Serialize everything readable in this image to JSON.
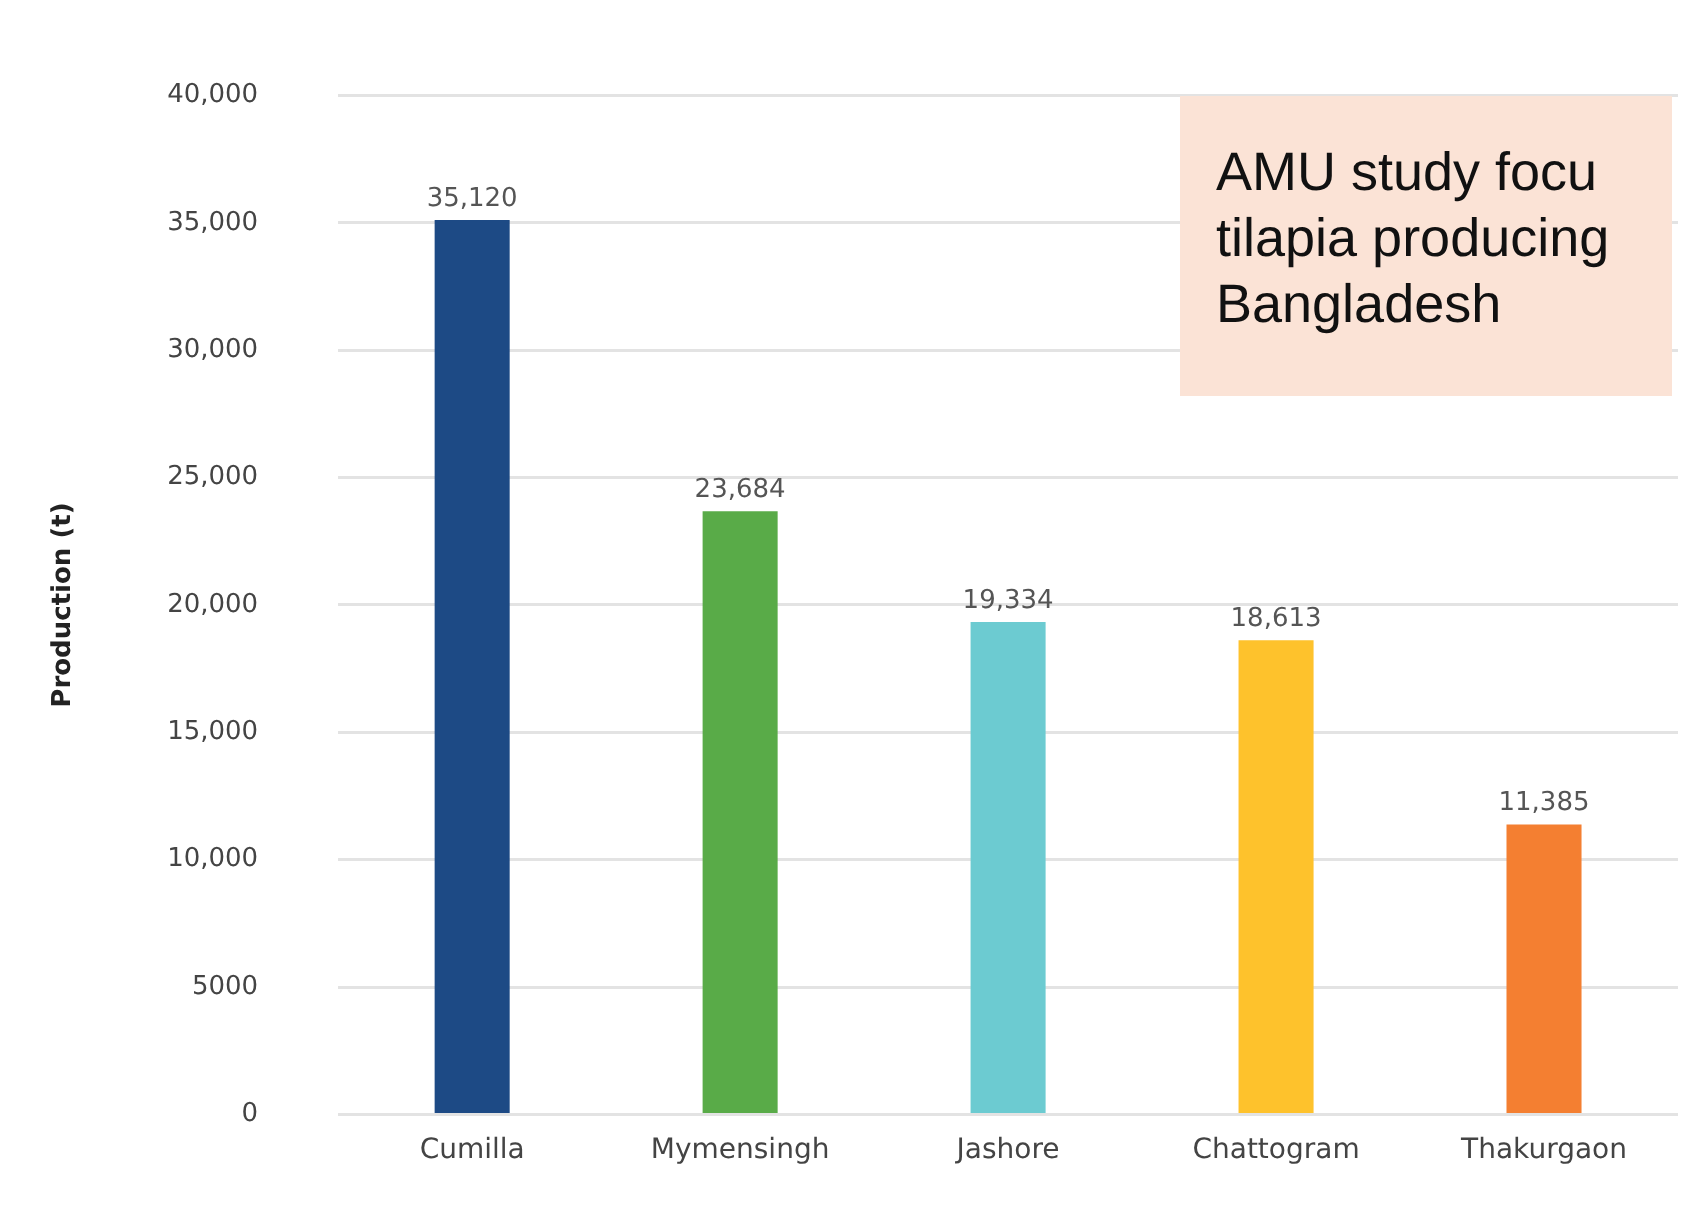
{
  "chart_data": {
    "type": "bar",
    "ylabel": "Production (t)",
    "categories": [
      "Cumilla",
      "Mymensingh",
      "Jashore",
      "Chattogram",
      "Thakurgaon"
    ],
    "values": [
      35120,
      23684,
      19334,
      18613,
      11385
    ],
    "colors": [
      "#1d4a85",
      "#59ab48",
      "#6ccbd1",
      "#fec22c",
      "#f47f31"
    ],
    "ylim": [
      0,
      40000
    ],
    "yticks": [
      0,
      5000,
      {
        "value": 10000,
        "label": "10,000"
      },
      {
        "value": 15000,
        "label": "15,000"
      },
      {
        "value": 20000,
        "label": "20,000"
      },
      {
        "value": 25000,
        "label": "25,000"
      },
      {
        "value": 30000,
        "label": "30,000"
      },
      {
        "value": 35000,
        "label": "35,000"
      },
      {
        "value": 40000,
        "label": "40,000"
      }
    ],
    "value_labels": [
      "35,120",
      "23,684",
      "19,334",
      "18,613",
      "11,385"
    ],
    "grid": "y",
    "legend": false,
    "annotations": [
      "AMU study focu\ntilapia producing\nBangladesh"
    ]
  }
}
